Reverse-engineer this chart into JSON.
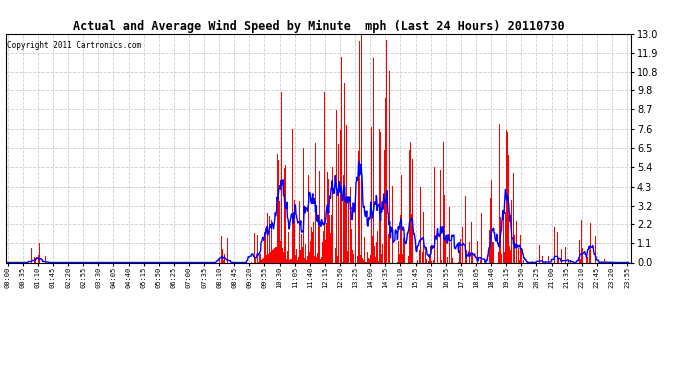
{
  "title": "Actual and Average Wind Speed by Minute  mph (Last 24 Hours) 20110730",
  "copyright": "Copyright 2011 Cartronics.com",
  "background_color": "#ffffff",
  "plot_bg_color": "#ffffff",
  "grid_color": "#c8c8c8",
  "bar_color": "#ff0000",
  "line_color": "#0000ff",
  "yticks": [
    0.0,
    1.1,
    2.2,
    3.2,
    4.3,
    5.4,
    6.5,
    7.6,
    8.7,
    9.8,
    10.8,
    11.9,
    13.0
  ],
  "ylim": [
    0.0,
    13.0
  ],
  "xtick_labels": [
    "00:00",
    "00:35",
    "01:10",
    "01:45",
    "02:20",
    "02:55",
    "03:30",
    "04:05",
    "04:40",
    "05:15",
    "05:50",
    "06:25",
    "07:00",
    "07:35",
    "08:10",
    "08:45",
    "09:20",
    "09:55",
    "10:30",
    "11:05",
    "11:40",
    "12:15",
    "12:50",
    "13:25",
    "14:00",
    "14:35",
    "15:10",
    "15:45",
    "16:20",
    "16:55",
    "17:30",
    "18:05",
    "18:40",
    "19:15",
    "19:50",
    "20:25",
    "21:00",
    "21:35",
    "22:10",
    "22:45",
    "23:20",
    "23:55"
  ]
}
